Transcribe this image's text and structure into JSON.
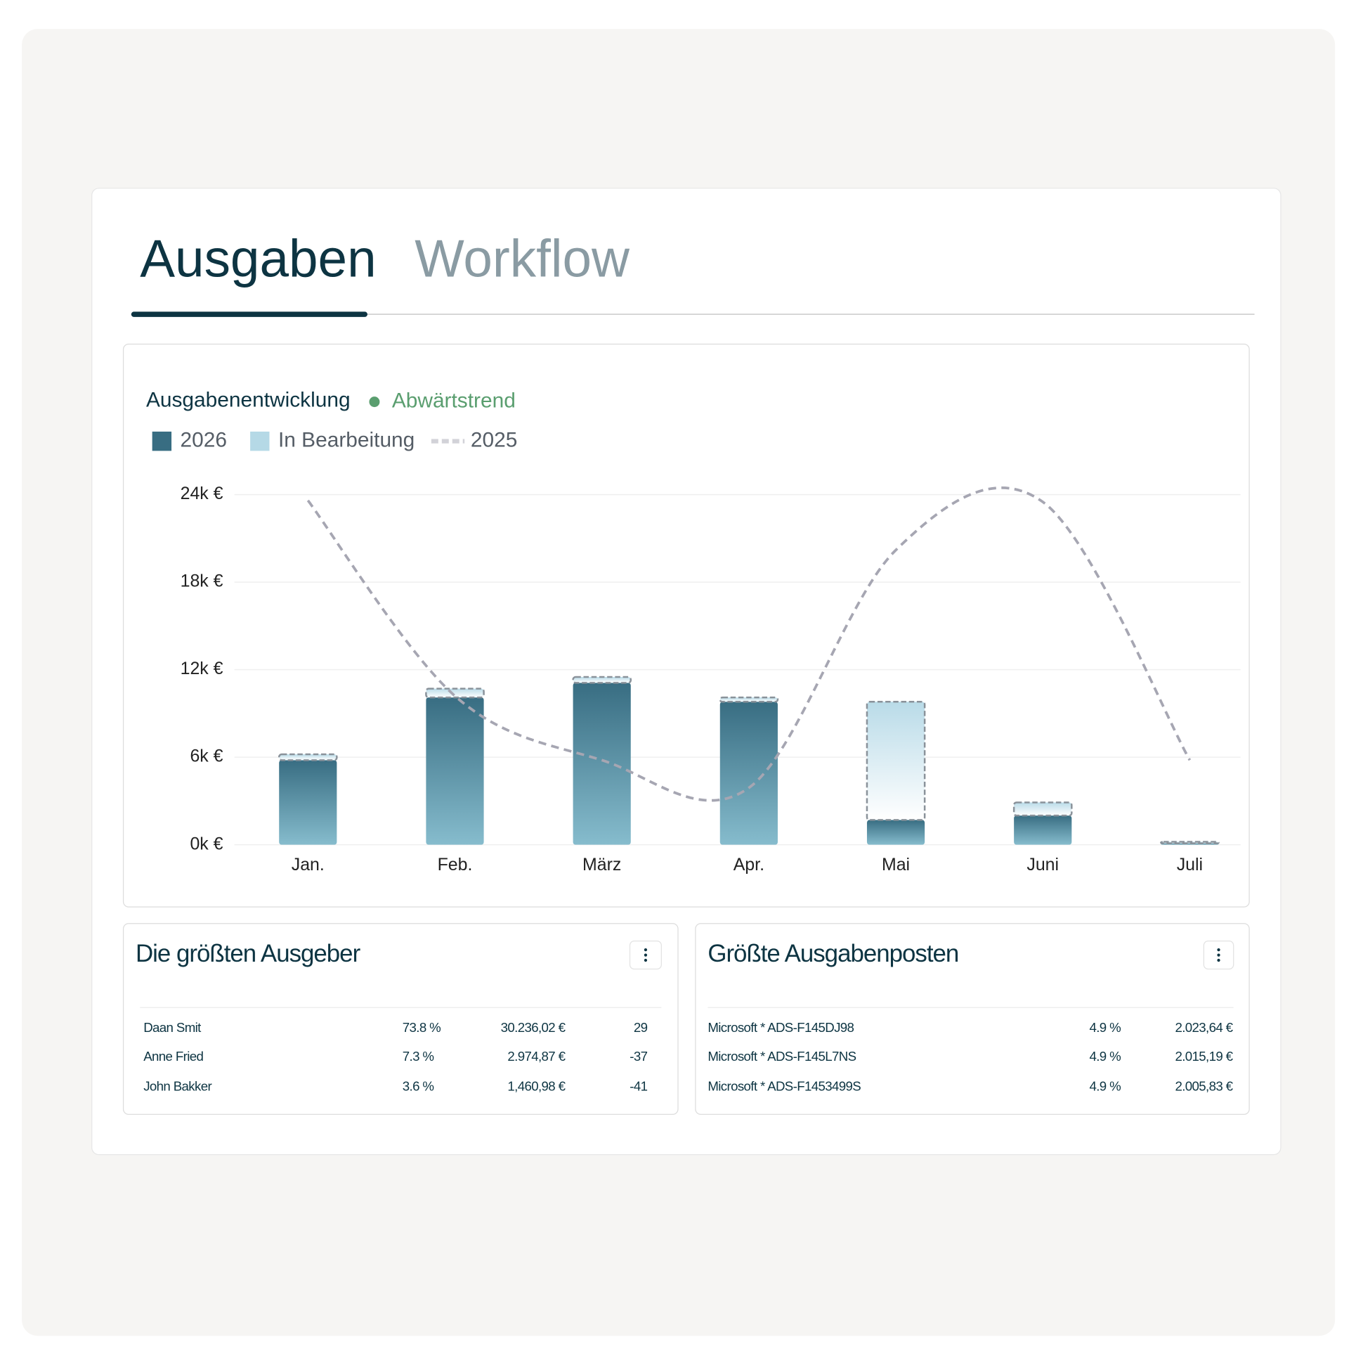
{
  "tabs": [
    "Ausgaben",
    "Workflow"
  ],
  "chart_data": {
    "type": "bar",
    "title": "Ausgabenentwicklung",
    "subtitle": "Abwärtstrend",
    "categories": [
      "Jan.",
      "Feb.",
      "März",
      "Apr.",
      "Mai",
      "Juni",
      "Juli"
    ],
    "series": [
      {
        "name": "2026",
        "color": "#386d82",
        "values": [
          5.8,
          10.1,
          11.1,
          9.8,
          1.7,
          2.0,
          0.1
        ]
      },
      {
        "name": "In Bearbeitung",
        "color": "#b5d9e6",
        "values": [
          0.4,
          0.6,
          0.4,
          0.3,
          8.1,
          0.9,
          0.1
        ]
      },
      {
        "name": "2025",
        "color": "#a6a6b2",
        "type": "line",
        "values": [
          23.6,
          10.2,
          5.8,
          3.9,
          20.2,
          23.5,
          5.8
        ]
      }
    ],
    "stacked": true,
    "ylim": [
      0,
      24
    ],
    "yticks": [
      {
        "value": 0,
        "label": "0k €"
      },
      {
        "value": 6,
        "label": "6k €"
      },
      {
        "value": 12,
        "label": "12k €"
      },
      {
        "value": 18,
        "label": "18k €"
      },
      {
        "value": 24,
        "label": "24k €"
      }
    ],
    "grid": true,
    "legend": "top-left"
  },
  "spenders": {
    "title": "Die größten Ausgeber",
    "rows": [
      [
        "Daan Smit",
        "73.8 %",
        "30.236,02 €",
        "29"
      ],
      [
        "Anne Fried",
        "7.3 %",
        "2.974,87 €",
        "-37"
      ],
      [
        "John Bakker",
        "3.6 %",
        "1,460,98 €",
        "-41"
      ]
    ]
  },
  "items": {
    "title": "Größte Ausgabenposten",
    "rows": [
      [
        "Microsoft * ADS-F145DJ98",
        "4.9 %",
        "2.023,64 €"
      ],
      [
        "Microsoft * ADS-F145L7NS",
        "4.9 %",
        "2.015,19 €"
      ],
      [
        "Microsoft * ADS-F1453499S",
        "4.9 %",
        "2.005,83 €"
      ]
    ]
  }
}
